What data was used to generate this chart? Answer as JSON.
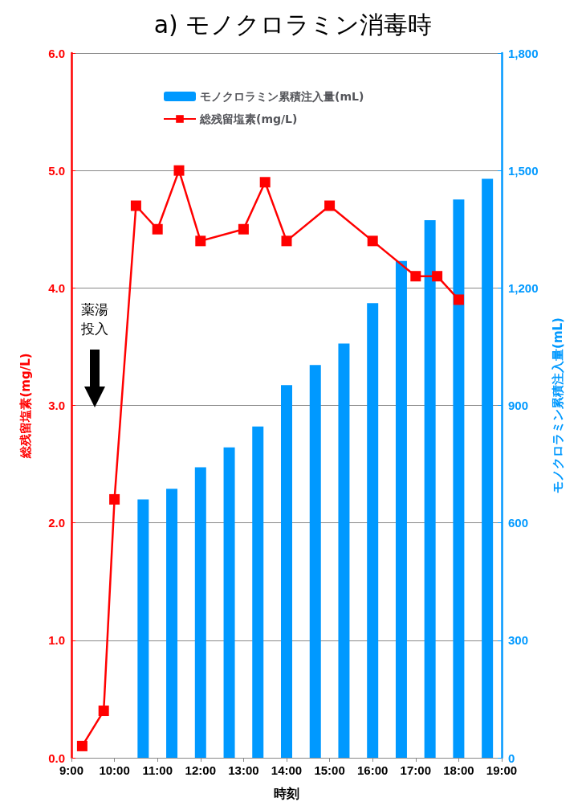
{
  "chart_data": {
    "type": "bar",
    "title": "a) モノクロラミン消毒時",
    "xlabel": "時刻",
    "ylabel": "総残留塩素(mg/L)",
    "y2label": "モノクロラミン累積注入量(mL)",
    "xlim": [
      9,
      19
    ],
    "xticks": [
      {
        "value": 9,
        "label": "9:00"
      },
      {
        "value": 10,
        "label": "10:00"
      },
      {
        "value": 11,
        "label": "11:00"
      },
      {
        "value": 12,
        "label": "12:00"
      },
      {
        "value": 13,
        "label": "13:00"
      },
      {
        "value": 14,
        "label": "14:00"
      },
      {
        "value": 15,
        "label": "15:00"
      },
      {
        "value": 16,
        "label": "16:00"
      },
      {
        "value": 17,
        "label": "17:00"
      },
      {
        "value": 18,
        "label": "18:00"
      },
      {
        "value": 19,
        "label": "19:00"
      }
    ],
    "ylim": [
      0,
      6
    ],
    "yticks": [
      {
        "value": 0,
        "label": "0.0"
      },
      {
        "value": 1,
        "label": "1.0"
      },
      {
        "value": 2,
        "label": "2.0"
      },
      {
        "value": 3,
        "label": "3.0"
      },
      {
        "value": 4,
        "label": "4.0"
      },
      {
        "value": 5,
        "label": "5.0"
      },
      {
        "value": 6,
        "label": "6.0"
      }
    ],
    "y2lim": [
      0,
      1800
    ],
    "y2ticks": [
      0,
      300,
      600,
      900,
      {
        "value": 1200,
        "label": "1,200"
      },
      {
        "value": 1500,
        "label": "1,500"
      },
      {
        "value": 1800,
        "label": "1,800"
      }
    ],
    "series": [
      {
        "name": "モノクロラミン累積注入量(mL)",
        "axis": "y2",
        "color": "#0099ff",
        "x": [
          10.667,
          11.333,
          12,
          12.667,
          13.333,
          14,
          14.667,
          15.333,
          16,
          16.667,
          17.333,
          18,
          18.667
        ],
        "values": [
          660,
          687,
          742,
          793,
          846,
          952,
          1003,
          1058,
          1161,
          1269,
          1373,
          1426,
          1479
        ]
      },
      {
        "name": "総残留塩素(mg/L)",
        "type": "line",
        "color": "#ff0000",
        "marker": "square",
        "x": [
          9.25,
          9.75,
          10,
          10.5,
          11,
          11.5,
          12,
          13,
          13.5,
          14,
          15,
          16,
          17,
          17.5,
          18
        ],
        "values": [
          0.1,
          0.4,
          2.2,
          4.7,
          4.5,
          5.0,
          4.4,
          4.5,
          4.9,
          4.4,
          4.7,
          4.4,
          4.1,
          4.1,
          3.9
        ]
      }
    ],
    "annotations": [
      "薬湯投入"
    ],
    "grid": "y",
    "legend": "top"
  }
}
